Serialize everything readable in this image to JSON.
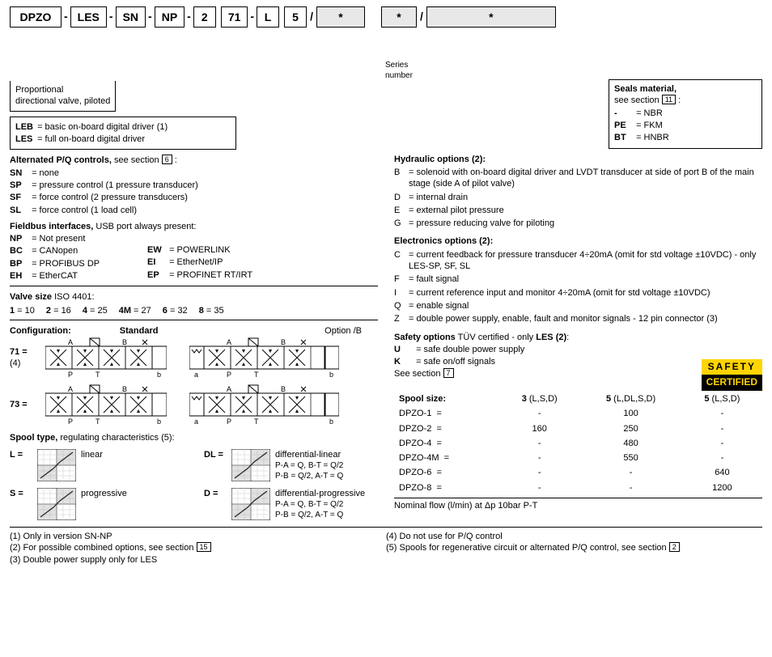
{
  "codes": {
    "c1": "DPZO",
    "c2": "LES",
    "c3": "SN",
    "c4": "NP",
    "c5": "2",
    "c6": "71",
    "c7": "L",
    "c8": "5",
    "star": "*",
    "series_label": "Series\nnumber"
  },
  "subtitle": "Proportional\ndirectional valve, piloted",
  "driver": {
    "leb": "= basic on-board digital driver (1)",
    "les": "= full on-board digital driver"
  },
  "pq": {
    "title": "Alternated P/Q controls,",
    "see": "see section",
    "ref": "6",
    "items": [
      {
        "k": "SN",
        "v": "= none"
      },
      {
        "k": "SP",
        "v": "= pressure control (1 pressure transducer)"
      },
      {
        "k": "SF",
        "v": "= force control (2 pressure transducers)"
      },
      {
        "k": "SL",
        "v": "= force control (1 load cell)"
      }
    ]
  },
  "fieldbus": {
    "title": "Fieldbus interfaces,",
    "sub": "USB port always present:",
    "left": [
      {
        "k": "NP",
        "v": "= Not present"
      },
      {
        "k": "BC",
        "v": "= CANopen"
      },
      {
        "k": "BP",
        "v": "= PROFIBUS DP"
      },
      {
        "k": "EH",
        "v": "= EtherCAT"
      }
    ],
    "right": [
      {
        "k": "EW",
        "v": "= POWERLINK"
      },
      {
        "k": "EI",
        "v": "= EtherNet/IP"
      },
      {
        "k": "EP",
        "v": "= PROFINET RT/IRT"
      }
    ]
  },
  "valvesize": {
    "title": "Valve size",
    "iso": "ISO 4401:",
    "items": [
      {
        "k": "1",
        "v": "= 10"
      },
      {
        "k": "2",
        "v": "= 16"
      },
      {
        "k": "4",
        "v": "= 25"
      },
      {
        "k": "4M",
        "v": "= 27"
      },
      {
        "k": "6",
        "v": "= 32"
      },
      {
        "k": "8",
        "v": "= 35"
      }
    ]
  },
  "config": {
    "title": "Configuration:",
    "standard": "Standard",
    "optionb": "Option /B",
    "rows": [
      {
        "k": "71 =",
        "note": "(4)"
      },
      {
        "k": "73 =",
        "note": ""
      }
    ],
    "ports": {
      "a": "A",
      "b": "B",
      "p": "P",
      "t": "T",
      "sa": "a",
      "sb": "b"
    }
  },
  "spooltype": {
    "title": "Spool type,",
    "sub": "regulating characteristics (5):",
    "items": [
      {
        "k": "L",
        "label": "linear",
        "extra": ""
      },
      {
        "k": "DL",
        "label": "differential-linear",
        "extra": "P-A = Q,    B-T = Q/2\nP-B = Q/2,  A-T = Q"
      },
      {
        "k": "S",
        "label": "progressive",
        "extra": ""
      },
      {
        "k": "D",
        "label": "differential-progressive",
        "extra": "P-A = Q,    B-T = Q/2\nP-B = Q/2,  A-T = Q"
      }
    ]
  },
  "seals": {
    "title": "Seals material,",
    "see": "see section",
    "ref": "11",
    "items": [
      {
        "k": "-",
        "v": "= NBR"
      },
      {
        "k": "PE",
        "v": "= FKM"
      },
      {
        "k": "BT",
        "v": "= HNBR"
      }
    ]
  },
  "hydraulic": {
    "title": "Hydraulic options (2):",
    "items": [
      {
        "k": "B",
        "v": "= solenoid with on-board digital driver and LVDT transducer at side of port B of the main stage (side A of pilot valve)"
      },
      {
        "k": "D",
        "v": "= internal drain"
      },
      {
        "k": "E",
        "v": "= external pilot pressure"
      },
      {
        "k": "G",
        "v": "= pressure reducing valve for piloting"
      }
    ]
  },
  "electronics": {
    "title": "Electronics options (2):",
    "items": [
      {
        "k": "C",
        "v": "= current feedback for pressure transducer 4÷20mA (omit for std voltage ±10VDC) - only LES-SP, SF, SL"
      },
      {
        "k": "F",
        "v": "= fault signal"
      },
      {
        "k": "I",
        "v": "= current reference input and monitor 4÷20mA (omit for std voltage ±10VDC)"
      },
      {
        "k": "Q",
        "v": "= enable signal"
      },
      {
        "k": "Z",
        "v": "= double power supply, enable, fault and monitor signals - 12 pin connector (3)"
      }
    ]
  },
  "safety_opts": {
    "title": "Safety options",
    "sub": "TÜV certified - only",
    "only": "LES (2)",
    "items": [
      {
        "k": "U",
        "v": "= safe double power supply"
      },
      {
        "k": "K",
        "v": "= safe on/off signals"
      }
    ],
    "see": "See section",
    "ref": "7",
    "badge_top": "SAFETY",
    "badge_bot": "CERTIFIED"
  },
  "spoolsize": {
    "title": "Spool size:",
    "cols": [
      "3 (L,S,D)",
      "5 (L,DL,S,D)",
      "5 (L,S,D)"
    ],
    "rows": [
      {
        "n": "DPZO-1",
        "v": [
          "-",
          "100",
          "-"
        ]
      },
      {
        "n": "DPZO-2",
        "v": [
          "160",
          "250",
          "-"
        ]
      },
      {
        "n": "DPZO-4",
        "v": [
          "-",
          "480",
          "-"
        ]
      },
      {
        "n": "DPZO-4M",
        "v": [
          "-",
          "550",
          "-"
        ]
      },
      {
        "n": "DPZO-6",
        "v": [
          "-",
          "-",
          "640"
        ]
      },
      {
        "n": "DPZO-8",
        "v": [
          "-",
          "-",
          "1200"
        ]
      }
    ],
    "footer": "Nominal flow (l/min) at Δp 10bar P-T"
  },
  "footnotes": {
    "left": [
      "(1) Only in version SN-NP",
      "(2) For possible combined options, see section",
      "(3) Double power supply only for LES"
    ],
    "ref2": "15",
    "right": [
      "(4) Do not use for P/Q control",
      "(5) Spools for regenerative circuit or alternated P/Q control, see section"
    ],
    "ref5": "2"
  },
  "colors": {
    "grid": "#999",
    "fill": "#ccc"
  }
}
